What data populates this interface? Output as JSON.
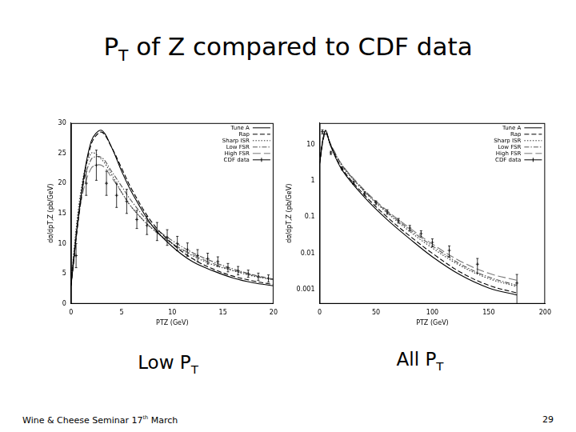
{
  "slide": {
    "title": [
      {
        "text": "P"
      },
      {
        "text": "T",
        "sub": true
      },
      {
        "text": " of Z compared to CDF data"
      }
    ],
    "captions": [
      [
        {
          "text": "Low P"
        },
        {
          "text": "T",
          "sub": true
        }
      ],
      [
        {
          "text": "All P"
        },
        {
          "text": "T",
          "sub": true
        }
      ]
    ],
    "footer": [
      {
        "text": "Wine & Cheese Seminar 17"
      },
      {
        "text": "th",
        "sup": true
      },
      {
        "text": " March"
      }
    ],
    "page": "29"
  },
  "chart_data": [
    {
      "type": "line",
      "x_label": "PTZ (GeV)",
      "y_label": "dσ/dpT,Z (pb/GeV)",
      "xlim": [
        0,
        20
      ],
      "xticks": [
        0,
        5,
        10,
        15,
        20
      ],
      "ylim": [
        0,
        30
      ],
      "yticks": [
        0,
        5,
        10,
        15,
        20,
        25,
        30
      ],
      "grid": false,
      "legend": "upper right",
      "series": [
        {
          "name": "Tune A",
          "color": "#000000",
          "line_style": "solid",
          "x": [
            0,
            1,
            2,
            3,
            4,
            5,
            6,
            8,
            10,
            12,
            14,
            16,
            18,
            20
          ],
          "values": [
            3,
            18,
            27,
            28.8,
            26,
            22,
            18.5,
            13,
            9.5,
            7,
            5.5,
            4.3,
            3.5,
            3.0
          ]
        },
        {
          "name": "Rap",
          "color": "#000000",
          "line_style": "dashed",
          "x": [
            0,
            1,
            2,
            3,
            4,
            5,
            6,
            8,
            10,
            12,
            14,
            16,
            18,
            20
          ],
          "values": [
            3,
            17.5,
            26.5,
            28.5,
            26,
            22.5,
            19,
            13.5,
            10,
            7.5,
            5.8,
            4.6,
            3.8,
            3.2
          ]
        },
        {
          "name": "Sharp ISR",
          "color": "#333333",
          "line_style": "dotted",
          "x": [
            0,
            1,
            2,
            3,
            4,
            5,
            6,
            8,
            10,
            12,
            14,
            16,
            18,
            20
          ],
          "values": [
            4,
            19,
            25,
            24,
            21.5,
            18.5,
            16,
            12.5,
            10,
            8,
            6.5,
            5.5,
            4.6,
            4.0
          ]
        },
        {
          "name": "Low FSR",
          "color": "#555555",
          "line_style": "dashdot",
          "x": [
            0,
            1,
            2,
            3,
            4,
            5,
            6,
            8,
            10,
            12,
            14,
            16,
            18,
            20
          ],
          "values": [
            4,
            18,
            24,
            24.3,
            22,
            19.5,
            17,
            13,
            10.5,
            8.5,
            7,
            5.8,
            4.8,
            4.1
          ]
        },
        {
          "name": "High FSR",
          "color": "#777777",
          "line_style": "longdash",
          "x": [
            0,
            1,
            2,
            3,
            4,
            5,
            6,
            8,
            10,
            12,
            14,
            16,
            18,
            20
          ],
          "values": [
            3.5,
            17,
            22.5,
            23,
            21,
            18.5,
            16,
            12.5,
            10,
            8.2,
            6.7,
            5.6,
            4.7,
            4.0
          ]
        },
        {
          "name": "CDF data",
          "color": "#000000",
          "type": "scatter",
          "marker": "cross",
          "x": [
            0.5,
            1.5,
            2.5,
            3.5,
            4.5,
            5.5,
            6.5,
            7.5,
            8.5,
            9.5,
            10.5,
            11.5,
            12.5,
            13.5,
            14.5,
            15.5,
            16.5,
            17.5,
            18.5,
            19.5
          ],
          "values": [
            8,
            20,
            23,
            20,
            18,
            17,
            14,
            13,
            12,
            11,
            10,
            9,
            8,
            7.5,
            7,
            6,
            5.5,
            5,
            4.5,
            4.2
          ],
          "errors": [
            2,
            2,
            2.5,
            2,
            2,
            2,
            1.5,
            1.5,
            1.5,
            1.3,
            1.2,
            1.1,
            1,
            0.9,
            0.8,
            0.7,
            0.7,
            0.6,
            0.6,
            0.6
          ]
        }
      ]
    },
    {
      "type": "line",
      "x_label": "PTZ (GeV)",
      "y_label": "dσ/dpT,Z (pb/GeV)",
      "xlim": [
        0,
        200
      ],
      "xticks": [
        0,
        50,
        100,
        150,
        200
      ],
      "ylim": [
        0.0004,
        40
      ],
      "yticks": [
        0.001,
        0.01,
        0.1,
        1,
        10
      ],
      "log": "y",
      "grid": false,
      "legend": "upper right",
      "series": [
        {
          "name": "Tune A",
          "color": "#000000",
          "line_style": "solid",
          "x": [
            0,
            5,
            10,
            20,
            40,
            60,
            80,
            100,
            125,
            150,
            175
          ],
          "values": [
            3,
            25,
            9,
            2,
            0.35,
            0.085,
            0.025,
            0.008,
            0.0025,
            0.0011,
            0.0007
          ]
        },
        {
          "name": "Rap",
          "color": "#000000",
          "line_style": "dashed",
          "x": [
            0,
            5,
            10,
            20,
            40,
            60,
            80,
            100,
            125,
            150,
            175
          ],
          "values": [
            3,
            24,
            9.5,
            2.2,
            0.4,
            0.1,
            0.03,
            0.01,
            0.003,
            0.0013,
            0.0008
          ]
        },
        {
          "name": "Sharp ISR",
          "color": "#333333",
          "line_style": "dotted",
          "x": [
            0,
            5,
            10,
            20,
            40,
            60,
            80,
            100,
            125,
            150,
            175
          ],
          "values": [
            4,
            21,
            9.5,
            2.6,
            0.5,
            0.13,
            0.04,
            0.014,
            0.0045,
            0.002,
            0.0012
          ]
        },
        {
          "name": "Low FSR",
          "color": "#555555",
          "line_style": "dashdot",
          "x": [
            0,
            5,
            10,
            20,
            40,
            60,
            80,
            100,
            125,
            150,
            175
          ],
          "values": [
            4,
            21,
            10,
            2.7,
            0.52,
            0.14,
            0.045,
            0.016,
            0.005,
            0.0022,
            0.0013
          ]
        },
        {
          "name": "High FSR",
          "color": "#777777",
          "line_style": "longdash",
          "x": [
            0,
            5,
            10,
            20,
            40,
            60,
            80,
            100,
            125,
            150,
            175
          ],
          "values": [
            3.5,
            20,
            10,
            2.8,
            0.55,
            0.15,
            0.05,
            0.018,
            0.006,
            0.0028,
            0.0018
          ]
        },
        {
          "name": "CDF data",
          "color": "#000000",
          "type": "scatter",
          "marker": "cross",
          "x": [
            2.5,
            10,
            20,
            30,
            40,
            50,
            60,
            70,
            80,
            90,
            100,
            115,
            140,
            175
          ],
          "values": [
            23,
            6,
            2.2,
            0.9,
            0.45,
            0.25,
            0.14,
            0.08,
            0.05,
            0.035,
            0.02,
            0.012,
            0.005,
            0.0015
          ],
          "errors": [
            3,
            0.6,
            0.2,
            0.09,
            0.05,
            0.03,
            0.02,
            0.012,
            0.009,
            0.007,
            0.005,
            0.004,
            0.0022,
            0.0011
          ]
        }
      ]
    }
  ]
}
